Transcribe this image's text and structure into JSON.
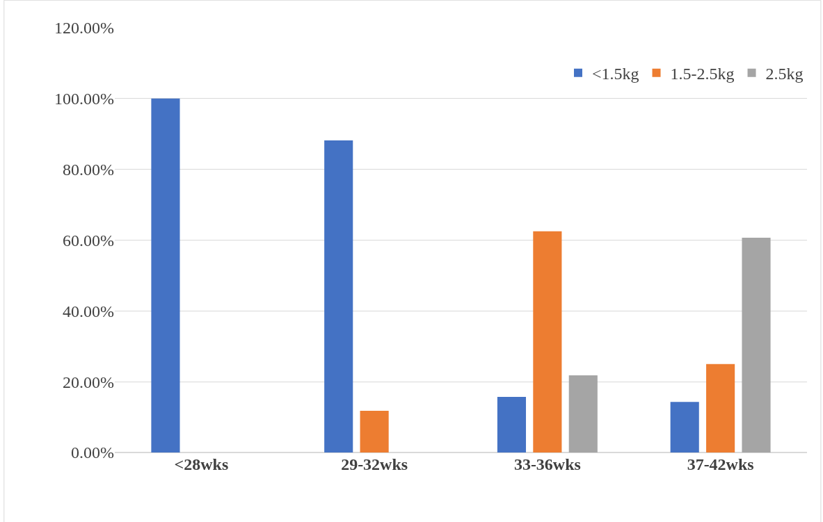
{
  "chart_data": {
    "type": "bar",
    "categories": [
      "<28wks",
      "29-32wks",
      "33-36wks",
      "37-42wks"
    ],
    "series": [
      {
        "name": "<1.5kg",
        "color": "#4472c4",
        "values": [
          100,
          88.2,
          15.7,
          14.3
        ]
      },
      {
        "name": "1.5-2.5kg",
        "color": "#ed7d31",
        "values": [
          0,
          11.8,
          62.5,
          25.0
        ]
      },
      {
        "name": "2.5kg",
        "color": "#a5a5a5",
        "values": [
          0,
          0,
          21.8,
          60.7
        ]
      }
    ],
    "ylim": [
      0,
      120
    ],
    "yticks": [
      {
        "value": 0,
        "label": "0.00%"
      },
      {
        "value": 20,
        "label": "20.00%"
      },
      {
        "value": 40,
        "label": "40.00%"
      },
      {
        "value": 60,
        "label": "60.00%"
      },
      {
        "value": 80,
        "label": "80.00%"
      },
      {
        "value": 100,
        "label": "100.00%"
      },
      {
        "value": 120,
        "label": "120.00%"
      }
    ],
    "grid": "y",
    "legend": "top right"
  }
}
